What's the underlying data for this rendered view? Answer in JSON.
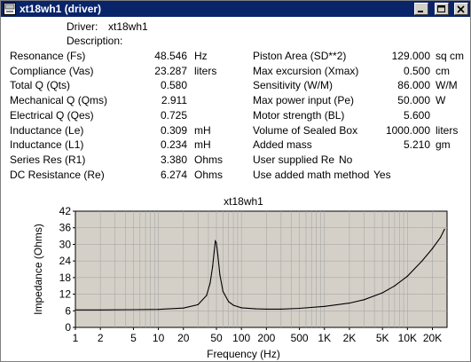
{
  "window": {
    "title": "xt18wh1 (driver)",
    "titlebar_color": "#0a246a"
  },
  "header": {
    "driver_label": "Driver:",
    "driver_value": "xt18wh1",
    "description_label": "Description:",
    "description_value": ""
  },
  "params_left": [
    {
      "label": "Resonance (Fs)",
      "value": "48.546",
      "unit": "Hz"
    },
    {
      "label": "Compliance (Vas)",
      "value": "23.287",
      "unit": "liters"
    },
    {
      "label": "Total Q (Qts)",
      "value": "0.580",
      "unit": ""
    },
    {
      "label": "Mechanical Q (Qms)",
      "value": "2.911",
      "unit": ""
    },
    {
      "label": "Electrical Q (Qes)",
      "value": "0.725",
      "unit": ""
    },
    {
      "label": "Inductance (Le)",
      "value": "0.309",
      "unit": "mH"
    },
    {
      "label": "Inductance (L1)",
      "value": "0.234",
      "unit": "mH"
    },
    {
      "label": "Series Res (R1)",
      "value": "3.380",
      "unit": "Ohms"
    },
    {
      "label": "DC Resistance (Re)",
      "value": "6.274",
      "unit": "Ohms"
    }
  ],
  "params_right": [
    {
      "label": "Piston Area (SD**2)",
      "value": "129.000",
      "unit": "sq cm"
    },
    {
      "label": "Max excursion (Xmax)",
      "value": "0.500",
      "unit": "cm"
    },
    {
      "label": "Sensitivity (W/M)",
      "value": "86.000",
      "unit": "W/M"
    },
    {
      "label": "Max power input (Pe)",
      "value": "50.000",
      "unit": "W"
    },
    {
      "label": "Motor strength (BL)",
      "value": "5.600",
      "unit": ""
    },
    {
      "label": "Volume of Sealed Box",
      "value": "1000.000",
      "unit": "liters"
    },
    {
      "label": "Added mass",
      "value": "5.210",
      "unit": "gm"
    }
  ],
  "flags": [
    {
      "label": "User supplied Re",
      "value": "No"
    },
    {
      "label": "Use added math method",
      "value": "Yes"
    }
  ],
  "chart_data": {
    "type": "line",
    "title": "xt18wh1",
    "xlabel": "Frequency (Hz)",
    "ylabel": "Impedance (Ohms)",
    "x_scale": "log",
    "xlim": [
      1,
      30000
    ],
    "ylim": [
      0,
      42
    ],
    "grid": true,
    "x_ticks": [
      {
        "value": 1,
        "label": "1"
      },
      {
        "value": 2,
        "label": "2"
      },
      {
        "value": 5,
        "label": "5"
      },
      {
        "value": 10,
        "label": "10"
      },
      {
        "value": 20,
        "label": "20"
      },
      {
        "value": 50,
        "label": "50"
      },
      {
        "value": 100,
        "label": "100"
      },
      {
        "value": 200,
        "label": "200"
      },
      {
        "value": 500,
        "label": "500"
      },
      {
        "value": 1000,
        "label": "1K"
      },
      {
        "value": 2000,
        "label": "2K"
      },
      {
        "value": 5000,
        "label": "5K"
      },
      {
        "value": 10000,
        "label": "10K"
      },
      {
        "value": 20000,
        "label": "20K"
      }
    ],
    "y_ticks": [
      0,
      6,
      12,
      18,
      24,
      30,
      36,
      42
    ],
    "plot_bg": "#d4d0c8",
    "line_color": "#000000",
    "x": [
      1,
      2,
      5,
      10,
      20,
      30,
      38,
      42,
      45,
      47,
      48.5,
      50,
      52,
      55,
      60,
      70,
      80,
      100,
      150,
      200,
      300,
      500,
      1000,
      2000,
      3000,
      5000,
      7000,
      10000,
      15000,
      20000,
      25000,
      28000
    ],
    "y": [
      6.3,
      6.3,
      6.4,
      6.5,
      7.0,
      8.2,
      11.5,
      16.0,
      22.0,
      27.5,
      31.2,
      30.5,
      26.0,
      19.0,
      13.0,
      9.3,
      8.0,
      7.1,
      6.7,
      6.6,
      6.6,
      6.9,
      7.6,
      8.8,
      10.0,
      12.5,
      15.0,
      18.5,
      24.0,
      28.5,
      32.5,
      35.5
    ]
  }
}
